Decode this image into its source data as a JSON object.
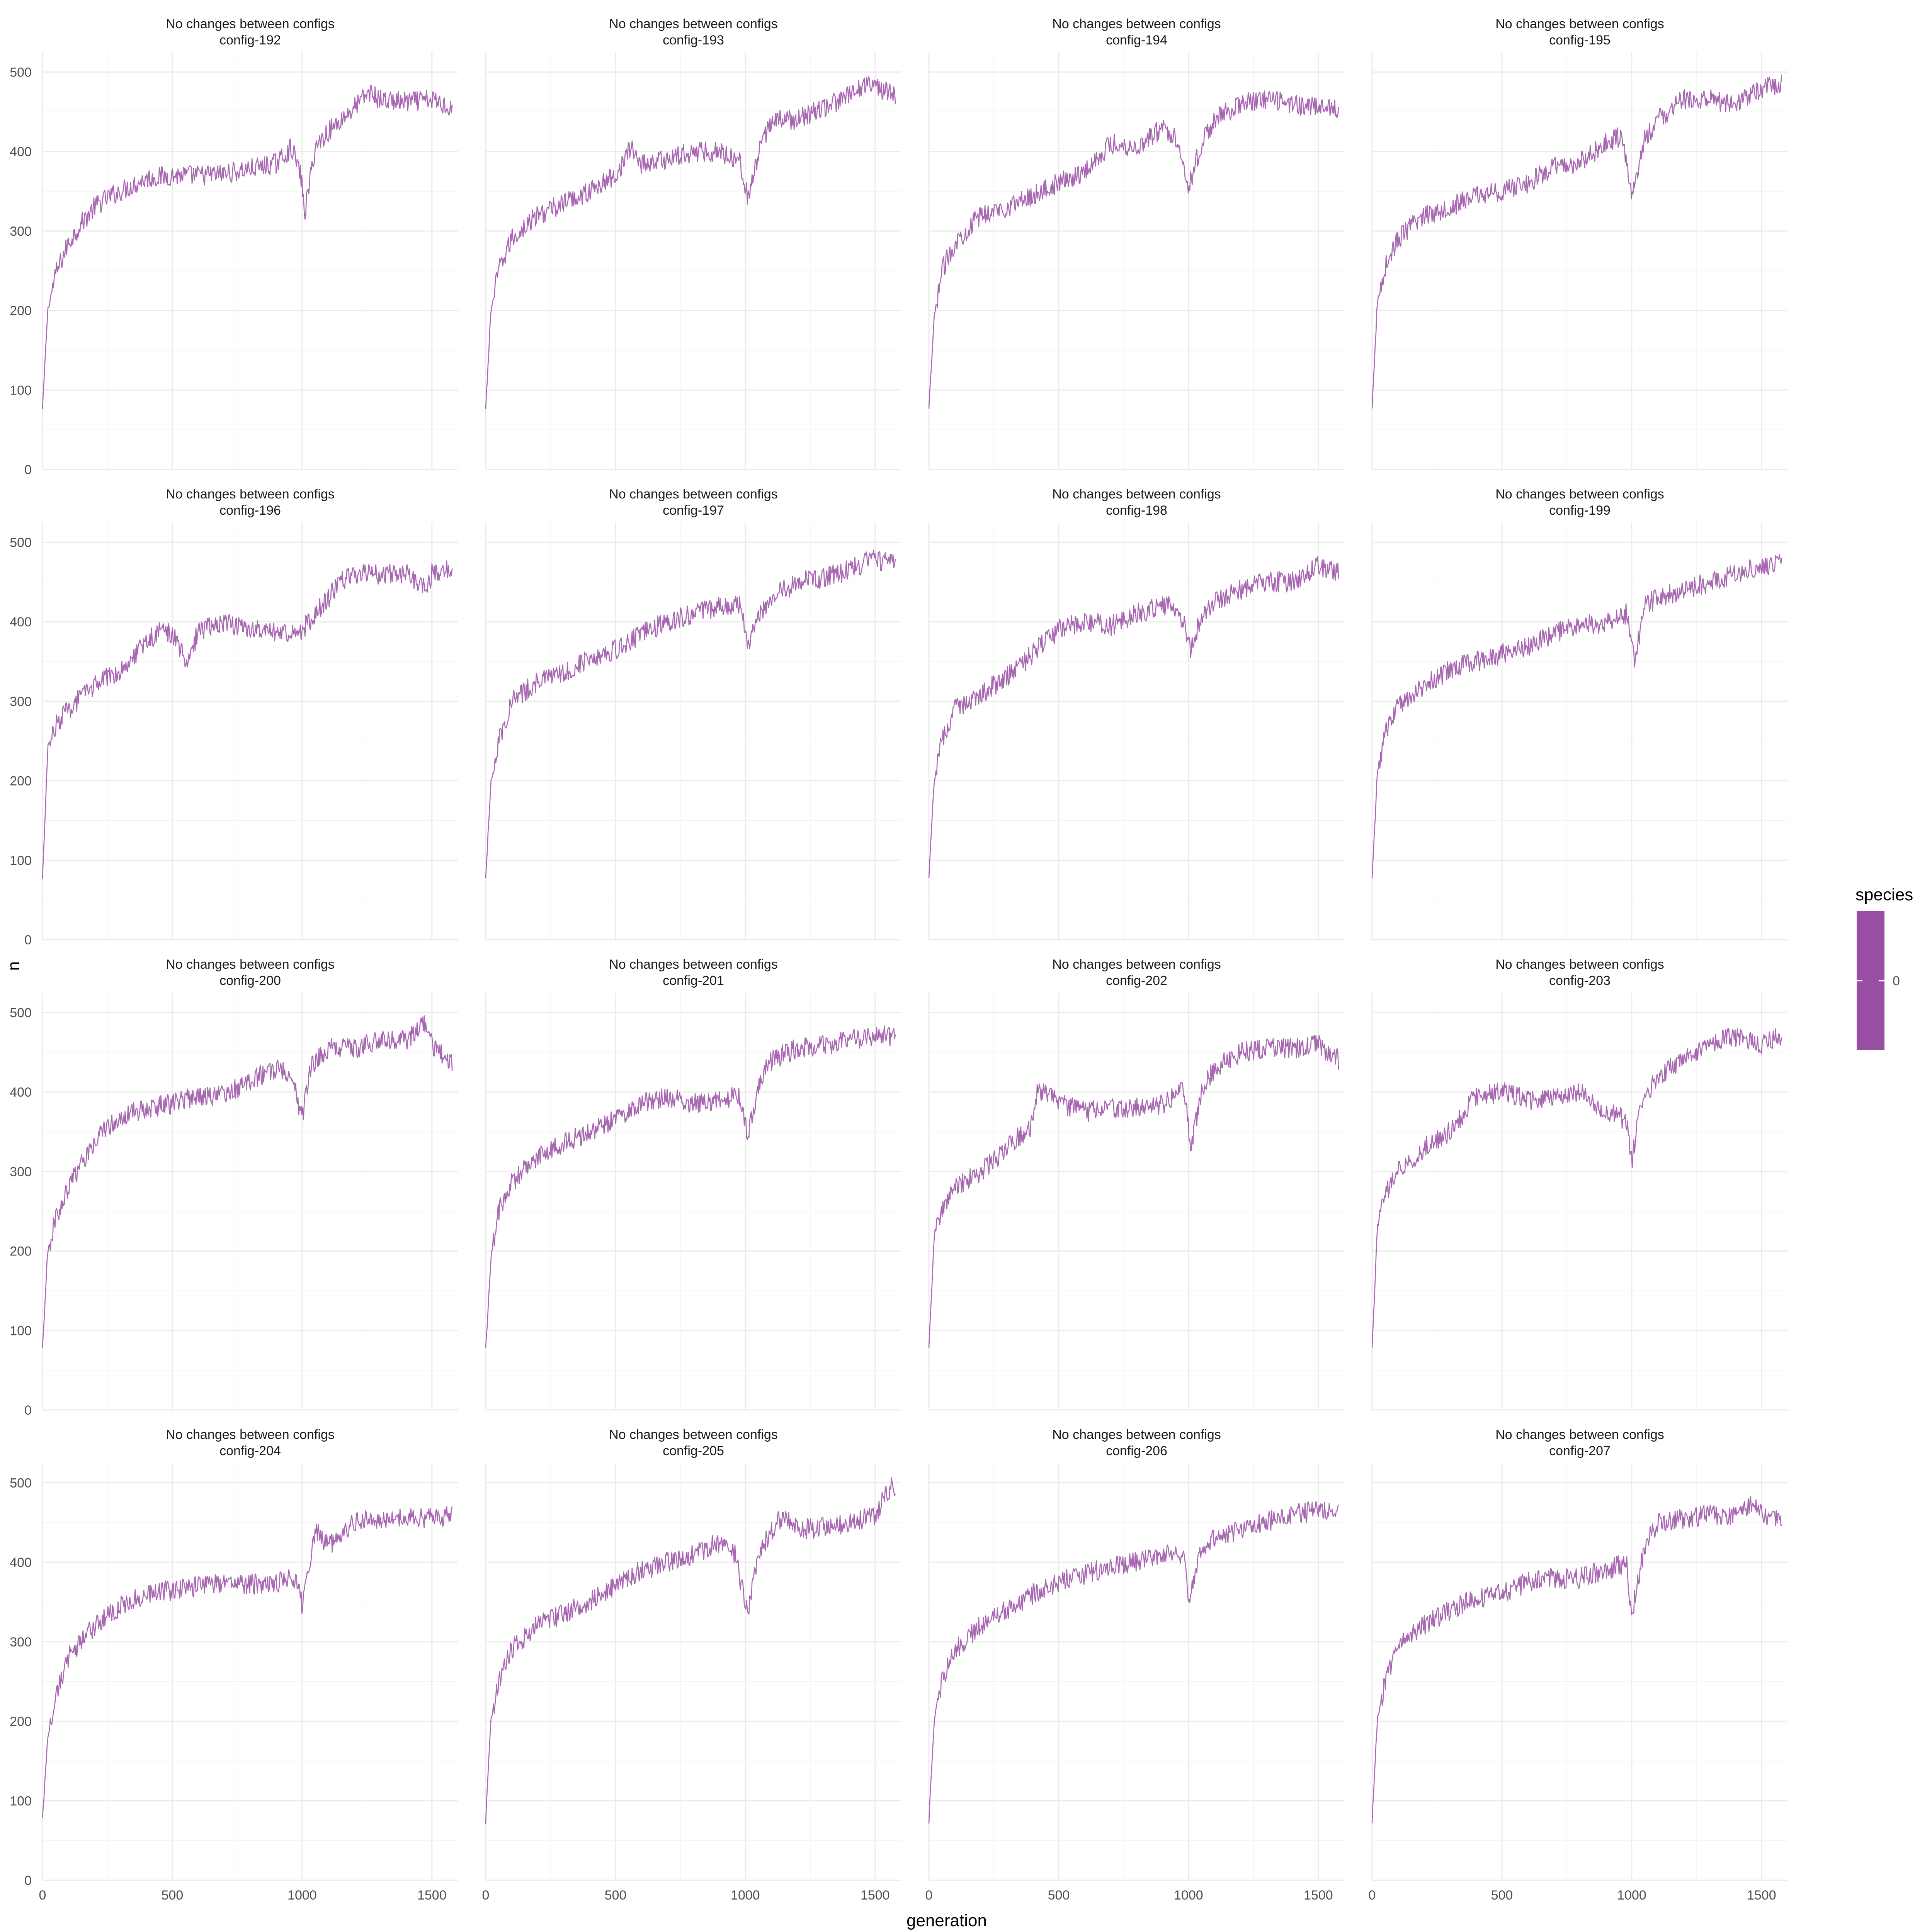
{
  "chart_data": {
    "type": "line",
    "layout": "facet-grid 4x4",
    "xlabel": "generation",
    "ylabel": "n",
    "xlim": [
      0,
      1600
    ],
    "ylim": [
      0,
      525
    ],
    "x_ticks": [
      0,
      500,
      1000,
      1500
    ],
    "y_ticks": [
      0,
      100,
      200,
      300,
      400,
      500
    ],
    "grid": true,
    "legend": {
      "title": "species",
      "entries": [
        "0"
      ],
      "placement": "right"
    },
    "series_color": "#984ea3",
    "facets": [
      {
        "strip": [
          "No changes between configs",
          "config-192"
        ],
        "series": [
          {
            "name": "0",
            "x": [
              0,
              20,
              50,
              100,
              150,
              200,
              250,
              300,
              400,
              500,
              600,
              700,
              800,
              900,
              960,
              995,
              1010,
              1050,
              1100,
              1150,
              1200,
              1260,
              1300,
              1400,
              1500,
              1580
            ],
            "y": [
              75,
              200,
              245,
              285,
              310,
              330,
              342,
              350,
              366,
              370,
              370,
              372,
              378,
              385,
              405,
              370,
              322,
              405,
              425,
              440,
              455,
              475,
              465,
              462,
              465,
              455
            ]
          }
        ]
      },
      {
        "strip": [
          "No changes between configs",
          "config-193"
        ],
        "series": [
          {
            "name": "0",
            "x": [
              0,
              20,
              50,
              100,
              150,
              200,
              300,
              400,
              500,
              560,
              600,
              700,
              800,
              900,
              980,
              1010,
              1050,
              1100,
              1200,
              1300,
              1400,
              1480,
              1500,
              1580
            ],
            "y": [
              75,
              200,
              250,
              290,
              305,
              320,
              335,
              350,
              370,
              405,
              385,
              390,
              400,
              400,
              390,
              340,
              395,
              440,
              440,
              455,
              470,
              490,
              480,
              470
            ]
          }
        ]
      },
      {
        "strip": [
          "No changes between configs",
          "config-194"
        ],
        "series": [
          {
            "name": "0",
            "x": [
              0,
              20,
              50,
              100,
              200,
              300,
              400,
              500,
              600,
              700,
              800,
              900,
              960,
              1000,
              1050,
              1100,
              1200,
              1300,
              1400,
              1500,
              1580
            ],
            "y": [
              75,
              190,
              250,
              285,
              320,
              330,
              345,
              360,
              375,
              410,
              405,
              430,
              415,
              355,
              410,
              440,
              460,
              465,
              460,
              455,
              455
            ]
          }
        ]
      },
      {
        "strip": [
          "No changes between configs",
          "config-195"
        ],
        "series": [
          {
            "name": "0",
            "x": [
              0,
              20,
              50,
              100,
              200,
              300,
              400,
              500,
              600,
              700,
              800,
              900,
              960,
              1000,
              1050,
              1100,
              1200,
              1300,
              1400,
              1500,
              1580
            ],
            "y": [
              75,
              210,
              255,
              290,
              320,
              330,
              345,
              350,
              360,
              380,
              385,
              410,
              420,
              345,
              415,
              440,
              465,
              465,
              460,
              480,
              485
            ]
          }
        ]
      },
      {
        "strip": [
          "No changes between configs",
          "config-196"
        ],
        "series": [
          {
            "name": "0",
            "x": [
              0,
              20,
              50,
              100,
              200,
              300,
              400,
              460,
              500,
              560,
              600,
              700,
              800,
              900,
              1000,
              1050,
              1100,
              1150,
              1200,
              1300,
              1400,
              1480,
              1500,
              1580
            ],
            "y": [
              75,
              240,
              270,
              290,
              320,
              340,
              375,
              390,
              385,
              345,
              390,
              400,
              390,
              385,
              390,
              410,
              430,
              450,
              460,
              460,
              462,
              440,
              460,
              470
            ]
          }
        ]
      },
      {
        "strip": [
          "No changes between configs",
          "config-197"
        ],
        "series": [
          {
            "name": "0",
            "x": [
              0,
              20,
              50,
              100,
              200,
              300,
              400,
              500,
              600,
              700,
              800,
              900,
              980,
              1010,
              1050,
              1100,
              1200,
              1300,
              1400,
              1500,
              1580
            ],
            "y": [
              75,
              200,
              250,
              300,
              325,
              335,
              355,
              365,
              385,
              400,
              410,
              420,
              420,
              370,
              410,
              430,
              450,
              455,
              465,
              480,
              470
            ]
          }
        ]
      },
      {
        "strip": [
          "No changes between configs",
          "config-198"
        ],
        "series": [
          {
            "name": "0",
            "x": [
              0,
              20,
              50,
              100,
              200,
              300,
              400,
              500,
              600,
              700,
              800,
              900,
              960,
              1010,
              1050,
              1100,
              1200,
              1300,
              1400,
              1500,
              1580
            ],
            "y": [
              75,
              200,
              250,
              290,
              310,
              330,
              360,
              390,
              400,
              395,
              410,
              420,
              420,
              365,
              410,
              425,
              440,
              450,
              450,
              470,
              460
            ]
          }
        ]
      },
      {
        "strip": [
          "No changes between configs",
          "config-199"
        ],
        "series": [
          {
            "name": "0",
            "x": [
              0,
              20,
              50,
              100,
              200,
              300,
              400,
              500,
              600,
              700,
              800,
              900,
              980,
              1010,
              1050,
              1100,
              1200,
              1300,
              1400,
              1500,
              1580
            ],
            "y": [
              75,
              210,
              260,
              295,
              320,
              340,
              350,
              360,
              370,
              385,
              395,
              400,
              410,
              350,
              420,
              430,
              440,
              450,
              460,
              470,
              475
            ]
          }
        ]
      },
      {
        "strip": [
          "No changes between configs",
          "config-200"
        ],
        "series": [
          {
            "name": "0",
            "x": [
              0,
              20,
              50,
              100,
              150,
              200,
              300,
              400,
              500,
              600,
              700,
              800,
              900,
              960,
              1000,
              1030,
              1100,
              1200,
              1300,
              1400,
              1480,
              1500,
              1580
            ],
            "y": [
              75,
              200,
              240,
              280,
              310,
              340,
              370,
              380,
              385,
              395,
              395,
              415,
              430,
              420,
              365,
              430,
              455,
              455,
              465,
              465,
              490,
              460,
              435
            ]
          }
        ]
      },
      {
        "strip": [
          "No changes between configs",
          "config-201"
        ],
        "series": [
          {
            "name": "0",
            "x": [
              0,
              20,
              50,
              100,
              200,
              300,
              400,
              500,
              600,
              700,
              800,
              900,
              980,
              1010,
              1050,
              1100,
              1200,
              1300,
              1400,
              1500,
              1580
            ],
            "y": [
              75,
              190,
              250,
              285,
              320,
              335,
              350,
              365,
              385,
              395,
              385,
              390,
              395,
              340,
              410,
              440,
              455,
              460,
              465,
              470,
              470
            ]
          }
        ]
      },
      {
        "strip": [
          "No changes between configs",
          "config-202"
        ],
        "series": [
          {
            "name": "0",
            "x": [
              0,
              20,
              50,
              100,
              200,
              300,
              400,
              420,
              500,
              600,
              700,
              800,
              900,
              980,
              1010,
              1050,
              1100,
              1200,
              1300,
              1400,
              1500,
              1580
            ],
            "y": [
              75,
              220,
              250,
              280,
              300,
              330,
              360,
              405,
              385,
              375,
              380,
              380,
              385,
              405,
              330,
              400,
              430,
              450,
              455,
              455,
              460,
              440
            ]
          }
        ]
      },
      {
        "strip": [
          "No changes between configs",
          "config-203"
        ],
        "series": [
          {
            "name": "0",
            "x": [
              0,
              20,
              50,
              100,
              200,
              300,
              400,
              500,
              600,
              700,
              800,
              860,
              900,
              980,
              1000,
              1030,
              1100,
              1200,
              1300,
              1400,
              1500,
              1580
            ],
            "y": [
              75,
              230,
              270,
              300,
              330,
              350,
              395,
              400,
              390,
              395,
              400,
              385,
              375,
              365,
              310,
              380,
              420,
              440,
              460,
              470,
              460,
              470
            ]
          }
        ]
      },
      {
        "strip": [
          "No changes between configs",
          "config-204"
        ],
        "series": [
          {
            "name": "0",
            "x": [
              0,
              20,
              50,
              100,
              200,
              300,
              400,
              500,
              600,
              700,
              800,
              900,
              980,
              1000,
              1050,
              1100,
              1200,
              1300,
              1400,
              1500,
              1580
            ],
            "y": [
              75,
              180,
              230,
              280,
              320,
              345,
              360,
              365,
              370,
              375,
              372,
              375,
              380,
              345,
              440,
              420,
              450,
              455,
              458,
              455,
              460
            ]
          }
        ]
      },
      {
        "strip": [
          "No changes between configs",
          "config-205"
        ],
        "series": [
          {
            "name": "0",
            "x": [
              0,
              20,
              50,
              100,
              200,
              300,
              400,
              500,
              600,
              700,
              800,
              900,
              960,
              1010,
              1050,
              1100,
              1150,
              1200,
              1300,
              1400,
              1500,
              1560,
              1580
            ],
            "y": [
              75,
              200,
              250,
              290,
              320,
              335,
              350,
              370,
              390,
              400,
              410,
              425,
              410,
              335,
              410,
              440,
              460,
              440,
              445,
              450,
              460,
              495,
              490
            ]
          }
        ]
      },
      {
        "strip": [
          "No changes between configs",
          "config-206"
        ],
        "series": [
          {
            "name": "0",
            "x": [
              0,
              20,
              50,
              100,
              200,
              300,
              400,
              500,
              600,
              700,
              800,
              900,
              980,
              1000,
              1050,
              1100,
              1200,
              1300,
              1400,
              1500,
              1580
            ],
            "y": [
              75,
              200,
              250,
              290,
              320,
              340,
              360,
              375,
              385,
              395,
              400,
              410,
              405,
              355,
              420,
              430,
              440,
              450,
              460,
              465,
              465
            ]
          }
        ]
      },
      {
        "strip": [
          "No changes between configs",
          "config-207"
        ],
        "series": [
          {
            "name": "0",
            "x": [
              0,
              20,
              50,
              100,
              200,
              300,
              400,
              500,
              600,
              700,
              800,
              900,
              980,
              1000,
              1050,
              1100,
              1200,
              1300,
              1400,
              1480,
              1500,
              1580
            ],
            "y": [
              75,
              200,
              250,
              300,
              320,
              340,
              355,
              360,
              375,
              380,
              380,
              390,
              400,
              335,
              420,
              450,
              455,
              460,
              460,
              475,
              460,
              455
            ]
          }
        ]
      }
    ]
  }
}
